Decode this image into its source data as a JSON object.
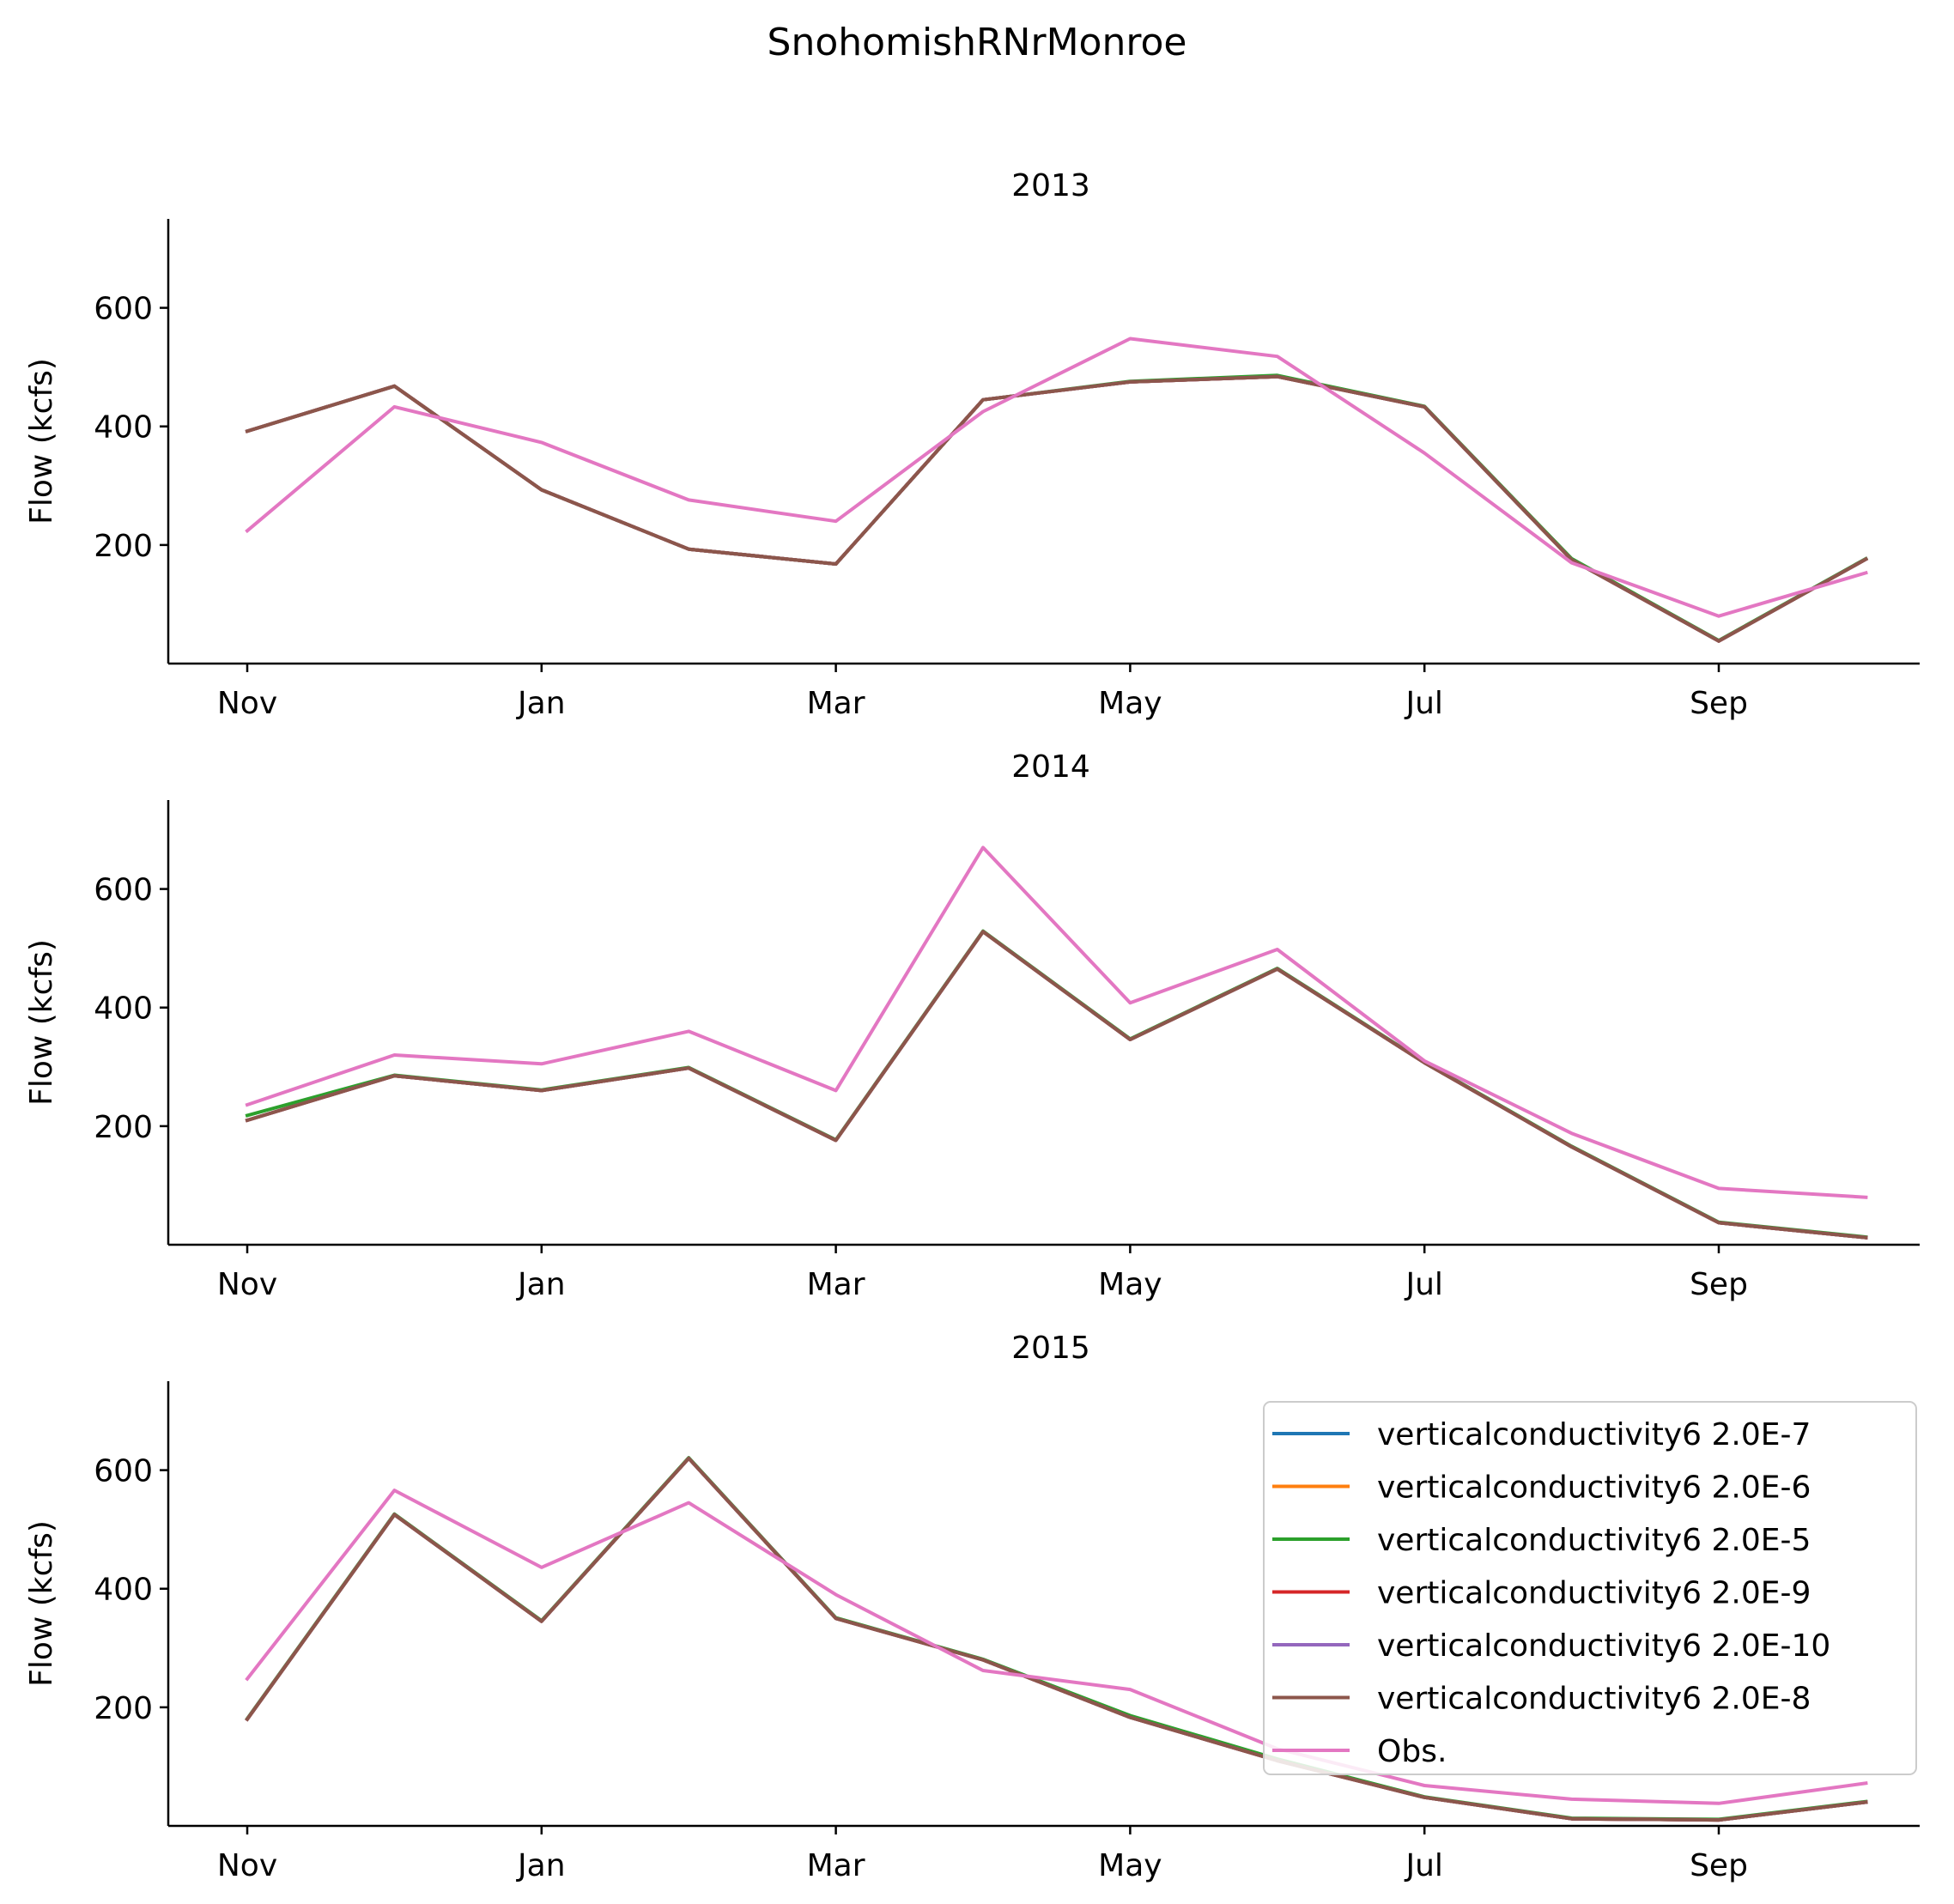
{
  "figure_title": "SnohomishRNrMonroe",
  "legend": {
    "placement": "upper-right of bottom panel",
    "entries": [
      {
        "label": "verticalconductivity6 2.0E-7",
        "color": "#1f77b4"
      },
      {
        "label": "verticalconductivity6 2.0E-6",
        "color": "#ff7f0e"
      },
      {
        "label": "verticalconductivity6 2.0E-5",
        "color": "#2ca02c"
      },
      {
        "label": "verticalconductivity6 2.0E-9",
        "color": "#d62728"
      },
      {
        "label": "verticalconductivity6 2.0E-10",
        "color": "#9467bd"
      },
      {
        "label": "verticalconductivity6 2.0E-8",
        "color": "#8c564b"
      },
      {
        "label": "Obs.",
        "color": "#e377c2"
      }
    ]
  },
  "chart_data": [
    {
      "type": "line",
      "title": "2013",
      "ylabel": "Flow (kcfs)",
      "x": [
        "Nov",
        "Dec",
        "Jan",
        "Feb",
        "Mar",
        "Apr",
        "May",
        "Jun",
        "Jul",
        "Aug",
        "Sep",
        "Oct"
      ],
      "xticks": [
        "Nov",
        "Jan",
        "Mar",
        "May",
        "Jul",
        "Sep"
      ],
      "yticks": [
        200,
        400,
        600
      ],
      "ylim": [
        0,
        750
      ],
      "series": [
        {
          "name": "verticalconductivity6 2.0E-7",
          "color": "#1f77b4",
          "values": [
            392,
            468,
            293,
            193,
            168,
            445,
            475,
            484,
            433,
            175,
            38,
            176
          ]
        },
        {
          "name": "verticalconductivity6 2.0E-6",
          "color": "#ff7f0e",
          "values": [
            392,
            468,
            293,
            193,
            168,
            445,
            475,
            484,
            433,
            175,
            38,
            176
          ]
        },
        {
          "name": "verticalconductivity6 2.0E-5",
          "color": "#2ca02c",
          "values": [
            392,
            468,
            293,
            193,
            168,
            445,
            476,
            486,
            434,
            177,
            39,
            177
          ]
        },
        {
          "name": "verticalconductivity6 2.0E-9",
          "color": "#d62728",
          "values": [
            392,
            468,
            293,
            193,
            168,
            445,
            475,
            484,
            433,
            175,
            38,
            176
          ]
        },
        {
          "name": "verticalconductivity6 2.0E-10",
          "color": "#9467bd",
          "values": [
            392,
            468,
            293,
            193,
            168,
            445,
            475,
            484,
            433,
            175,
            38,
            176
          ]
        },
        {
          "name": "verticalconductivity6 2.0E-8",
          "color": "#8c564b",
          "values": [
            392,
            468,
            293,
            193,
            168,
            445,
            475,
            484,
            433,
            175,
            38,
            176
          ]
        },
        {
          "name": "Obs.",
          "color": "#e377c2",
          "values": [
            224,
            433,
            373,
            276,
            240,
            425,
            548,
            518,
            355,
            170,
            80,
            153
          ]
        }
      ]
    },
    {
      "type": "line",
      "title": "2014",
      "ylabel": "Flow (kcfs)",
      "x": [
        "Nov",
        "Dec",
        "Jan",
        "Feb",
        "Mar",
        "Apr",
        "May",
        "Jun",
        "Jul",
        "Aug",
        "Sep",
        "Oct"
      ],
      "xticks": [
        "Nov",
        "Jan",
        "Mar",
        "May",
        "Jul",
        "Sep"
      ],
      "yticks": [
        200,
        400,
        600
      ],
      "ylim": [
        0,
        750
      ],
      "series": [
        {
          "name": "verticalconductivity6 2.0E-7",
          "color": "#1f77b4",
          "values": [
            210,
            285,
            260,
            298,
            176,
            528,
            346,
            465,
            307,
            165,
            37,
            12
          ]
        },
        {
          "name": "verticalconductivity6 2.0E-6",
          "color": "#ff7f0e",
          "values": [
            210,
            285,
            260,
            298,
            176,
            528,
            346,
            465,
            307,
            165,
            37,
            12
          ]
        },
        {
          "name": "verticalconductivity6 2.0E-5",
          "color": "#2ca02c",
          "values": [
            218,
            286,
            261,
            299,
            177,
            529,
            347,
            466,
            308,
            166,
            38,
            13
          ]
        },
        {
          "name": "verticalconductivity6 2.0E-9",
          "color": "#d62728",
          "values": [
            210,
            285,
            260,
            298,
            176,
            528,
            346,
            465,
            307,
            165,
            37,
            12
          ]
        },
        {
          "name": "verticalconductivity6 2.0E-10",
          "color": "#9467bd",
          "values": [
            210,
            285,
            260,
            298,
            176,
            528,
            346,
            465,
            307,
            165,
            37,
            12
          ]
        },
        {
          "name": "verticalconductivity6 2.0E-8",
          "color": "#8c564b",
          "values": [
            210,
            285,
            260,
            298,
            176,
            528,
            346,
            465,
            307,
            165,
            37,
            12
          ]
        },
        {
          "name": "Obs.",
          "color": "#e377c2",
          "values": [
            236,
            320,
            305,
            360,
            260,
            670,
            408,
            498,
            310,
            188,
            95,
            80
          ]
        }
      ]
    },
    {
      "type": "line",
      "title": "2015",
      "ylabel": "Flow (kcfs)",
      "x": [
        "Nov",
        "Dec",
        "Jan",
        "Feb",
        "Mar",
        "Apr",
        "May",
        "Jun",
        "Jul",
        "Aug",
        "Sep",
        "Oct"
      ],
      "xticks": [
        "Nov",
        "Jan",
        "Mar",
        "May",
        "Jul",
        "Sep"
      ],
      "yticks": [
        200,
        400,
        600
      ],
      "ylim": [
        0,
        750
      ],
      "series": [
        {
          "name": "verticalconductivity6 2.0E-7",
          "color": "#1f77b4",
          "values": [
            180,
            525,
            345,
            620,
            350,
            280,
            183,
            110,
            48,
            12,
            10,
            40
          ]
        },
        {
          "name": "verticalconductivity6 2.0E-6",
          "color": "#ff7f0e",
          "values": [
            180,
            525,
            345,
            620,
            350,
            280,
            183,
            110,
            48,
            12,
            10,
            40
          ]
        },
        {
          "name": "verticalconductivity6 2.0E-5",
          "color": "#2ca02c",
          "values": [
            181,
            526,
            346,
            621,
            351,
            281,
            186,
            113,
            49,
            13,
            11,
            41
          ]
        },
        {
          "name": "verticalconductivity6 2.0E-9",
          "color": "#d62728",
          "values": [
            180,
            525,
            345,
            620,
            350,
            280,
            183,
            110,
            48,
            12,
            10,
            40
          ]
        },
        {
          "name": "verticalconductivity6 2.0E-10",
          "color": "#9467bd",
          "values": [
            180,
            525,
            345,
            620,
            350,
            280,
            183,
            110,
            48,
            12,
            10,
            40
          ]
        },
        {
          "name": "verticalconductivity6 2.0E-8",
          "color": "#8c564b",
          "values": [
            180,
            525,
            345,
            620,
            350,
            280,
            183,
            110,
            48,
            12,
            10,
            40
          ]
        },
        {
          "name": "Obs.",
          "color": "#e377c2",
          "values": [
            248,
            566,
            436,
            545,
            390,
            262,
            230,
            130,
            68,
            45,
            38,
            72
          ]
        }
      ]
    }
  ]
}
